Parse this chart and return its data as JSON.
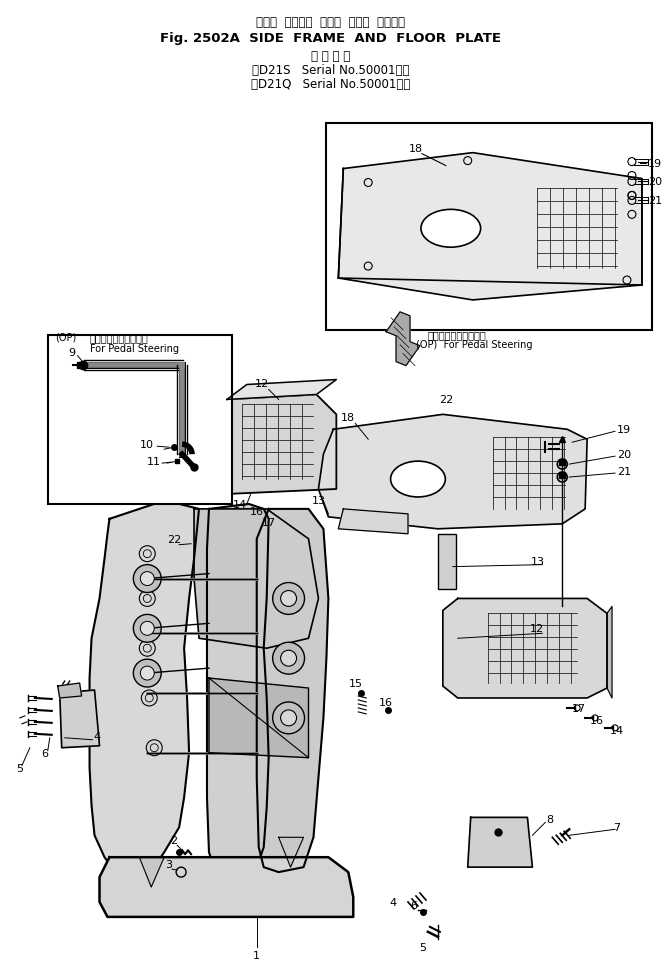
{
  "title_line1": "サイド  フレーム  および  フロア  プレート",
  "title_line2": "Fig. 2502A  SIDE  FRAME  AND  FLOOR  PLATE",
  "title_line3": "適 用 号 機",
  "title_line4": "（D21S   Serial No.50001～）",
  "title_line5": "（D21Q   Serial No.50001～）",
  "bg_color": "#ffffff",
  "figsize": [
    6.63,
    9.78
  ],
  "dpi": 100
}
